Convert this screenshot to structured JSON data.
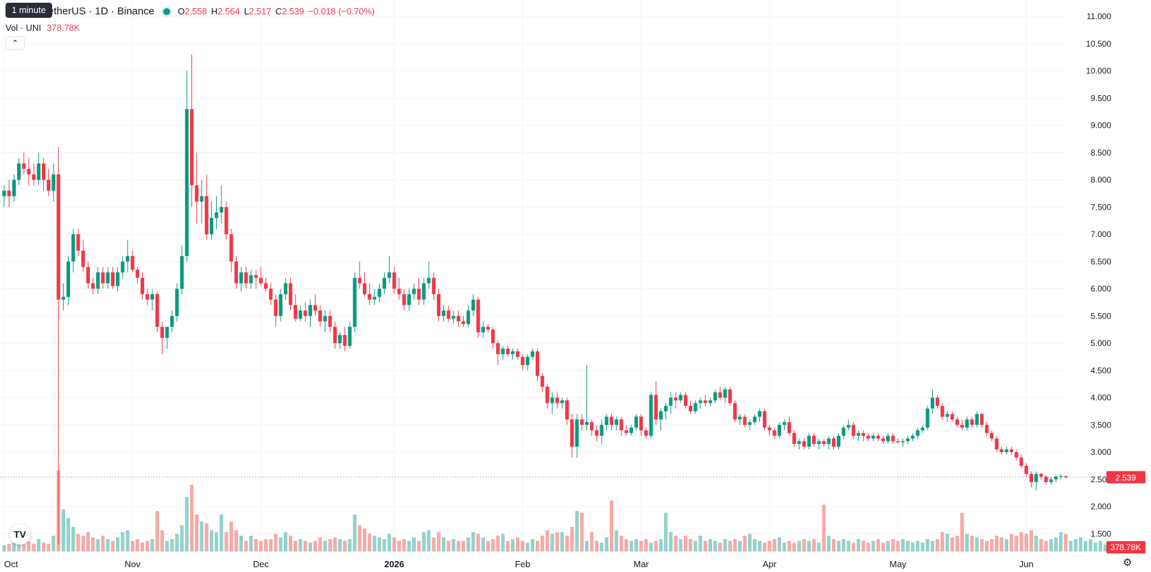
{
  "header": {
    "tooltip": "1 minute",
    "symbol": "etherUS · 1D · Binance",
    "ohlc": [
      {
        "k": "O",
        "v": "2.558"
      },
      {
        "k": "H",
        "v": "2.564"
      },
      {
        "k": "L",
        "v": "2.517"
      },
      {
        "k": "C",
        "v": "2.539"
      }
    ],
    "change": "−0.018 (−0.70%)",
    "volume_label": "Vol · UNI",
    "volume_value": "378.78K",
    "collapse_icon": "chevron-up-icon"
  },
  "colors": {
    "up": "#089981",
    "down": "#f23645",
    "up_vol": "#92d2cc",
    "down_vol": "#f7a9a7",
    "grid": "#f0f3fa",
    "axis_text": "#131722"
  },
  "price_axis": {
    "ticks": [
      "11.000",
      "10.500",
      "10.000",
      "9.500",
      "9.000",
      "8.500",
      "8.000",
      "7.500",
      "7.000",
      "6.500",
      "6.000",
      "5.500",
      "5.000",
      "4.500",
      "4.000",
      "3.500",
      "3.000",
      "2.500",
      "2.000",
      "1.500"
    ]
  },
  "time_axis": {
    "labels": [
      "Oct",
      "Nov",
      "Dec",
      "2026",
      "Feb",
      "Mar",
      "Apr",
      "May",
      "Jun"
    ]
  },
  "last_price": {
    "label": "2.539",
    "value": 2.539
  },
  "last_volume": {
    "label": "378.78K"
  },
  "chart_data": {
    "type": "candlestick",
    "x_axis": "date (daily candles)",
    "y_axis": "price (USDT)",
    "ylim": [
      1.25,
      11.15
    ],
    "grid": true,
    "candles": [
      [
        7.7,
        7.9,
        7.5,
        7.8
      ],
      [
        7.8,
        8.0,
        7.5,
        7.7
      ],
      [
        7.7,
        8.1,
        7.6,
        8.0
      ],
      [
        8.0,
        8.4,
        7.9,
        8.3
      ],
      [
        8.3,
        8.5,
        8.1,
        8.2
      ],
      [
        8.2,
        8.4,
        7.9,
        8.1
      ],
      [
        8.1,
        8.3,
        7.9,
        8.0
      ],
      [
        8.0,
        8.5,
        7.9,
        8.3
      ],
      [
        8.3,
        8.4,
        7.8,
        8.0
      ],
      [
        8.0,
        8.2,
        7.7,
        7.8
      ],
      [
        7.8,
        8.3,
        7.6,
        8.1
      ],
      [
        8.1,
        8.6,
        1.3,
        5.8
      ],
      [
        5.8,
        6.1,
        5.6,
        5.85
      ],
      [
        5.85,
        6.6,
        5.7,
        6.5
      ],
      [
        6.5,
        7.1,
        6.3,
        7.0
      ],
      [
        7.0,
        7.1,
        6.6,
        6.7
      ],
      [
        6.7,
        6.9,
        6.3,
        6.4
      ],
      [
        6.4,
        6.5,
        6.0,
        6.1
      ],
      [
        6.1,
        6.2,
        5.9,
        6.0
      ],
      [
        6.0,
        6.4,
        5.9,
        6.3
      ],
      [
        6.3,
        6.4,
        6.0,
        6.1
      ],
      [
        6.1,
        6.4,
        6.0,
        6.3
      ],
      [
        6.3,
        6.4,
        6.0,
        6.05
      ],
      [
        6.05,
        6.4,
        5.95,
        6.3
      ],
      [
        6.3,
        6.6,
        6.2,
        6.5
      ],
      [
        6.5,
        6.9,
        6.3,
        6.6
      ],
      [
        6.6,
        6.7,
        6.3,
        6.35
      ],
      [
        6.35,
        6.4,
        6.1,
        6.2
      ],
      [
        6.2,
        6.3,
        5.8,
        5.9
      ],
      [
        5.9,
        6.0,
        5.7,
        5.8
      ],
      [
        5.8,
        6.0,
        5.6,
        5.9
      ],
      [
        5.9,
        5.95,
        5.2,
        5.3
      ],
      [
        5.3,
        5.4,
        4.8,
        5.1
      ],
      [
        5.1,
        5.3,
        4.9,
        5.3
      ],
      [
        5.3,
        5.6,
        5.2,
        5.5
      ],
      [
        5.5,
        6.1,
        5.4,
        6.0
      ],
      [
        6.0,
        6.8,
        5.9,
        6.6
      ],
      [
        6.6,
        10.0,
        6.5,
        9.3
      ],
      [
        9.3,
        10.3,
        7.5,
        7.9
      ],
      [
        7.9,
        8.5,
        7.2,
        7.6
      ],
      [
        7.6,
        8.0,
        7.2,
        7.7
      ],
      [
        7.7,
        8.1,
        6.9,
        7.0
      ],
      [
        7.0,
        7.6,
        6.9,
        7.3
      ],
      [
        7.3,
        7.7,
        7.1,
        7.4
      ],
      [
        7.4,
        7.9,
        7.2,
        7.5
      ],
      [
        7.5,
        7.6,
        6.9,
        7.0
      ],
      [
        7.0,
        7.1,
        6.3,
        6.5
      ],
      [
        6.5,
        6.6,
        6.0,
        6.1
      ],
      [
        6.1,
        6.4,
        5.95,
        6.3
      ],
      [
        6.3,
        6.4,
        6.0,
        6.1
      ],
      [
        6.1,
        6.35,
        6.0,
        6.25
      ],
      [
        6.25,
        6.35,
        6.0,
        6.2
      ],
      [
        6.2,
        6.4,
        6.05,
        6.1
      ],
      [
        6.1,
        6.2,
        5.95,
        6.0
      ],
      [
        6.0,
        6.1,
        5.7,
        5.8
      ],
      [
        5.8,
        5.9,
        5.3,
        5.5
      ],
      [
        5.5,
        6.0,
        5.4,
        5.9
      ],
      [
        5.9,
        6.2,
        5.8,
        6.1
      ],
      [
        6.1,
        6.2,
        5.6,
        5.7
      ],
      [
        5.7,
        5.9,
        5.4,
        5.45
      ],
      [
        5.45,
        5.7,
        5.4,
        5.6
      ],
      [
        5.6,
        5.75,
        5.4,
        5.5
      ],
      [
        5.5,
        5.8,
        5.3,
        5.7
      ],
      [
        5.7,
        5.9,
        5.5,
        5.6
      ],
      [
        5.6,
        5.7,
        5.3,
        5.4
      ],
      [
        5.4,
        5.6,
        5.2,
        5.5
      ],
      [
        5.5,
        5.6,
        5.2,
        5.3
      ],
      [
        5.3,
        5.4,
        4.9,
        5.0
      ],
      [
        5.0,
        5.2,
        4.9,
        5.15
      ],
      [
        5.15,
        5.3,
        4.85,
        4.95
      ],
      [
        4.95,
        5.4,
        4.9,
        5.3
      ],
      [
        5.3,
        6.3,
        5.2,
        6.2
      ],
      [
        6.2,
        6.5,
        6.0,
        6.1
      ],
      [
        6.1,
        6.3,
        5.85,
        5.9
      ],
      [
        5.9,
        6.1,
        5.7,
        5.8
      ],
      [
        5.8,
        6.0,
        5.7,
        5.85
      ],
      [
        5.85,
        6.1,
        5.75,
        6.0
      ],
      [
        6.0,
        6.3,
        5.9,
        6.2
      ],
      [
        6.2,
        6.6,
        6.1,
        6.3
      ],
      [
        6.3,
        6.4,
        5.9,
        6.0
      ],
      [
        6.0,
        6.2,
        5.8,
        5.9
      ],
      [
        5.9,
        6.0,
        5.6,
        5.7
      ],
      [
        5.7,
        6.0,
        5.6,
        5.9
      ],
      [
        5.9,
        6.1,
        5.8,
        6.0
      ],
      [
        6.0,
        6.2,
        5.7,
        5.8
      ],
      [
        5.8,
        6.2,
        5.7,
        6.1
      ],
      [
        6.1,
        6.5,
        6.0,
        6.2
      ],
      [
        6.2,
        6.3,
        5.8,
        5.9
      ],
      [
        5.9,
        6.0,
        5.4,
        5.5
      ],
      [
        5.5,
        5.7,
        5.4,
        5.6
      ],
      [
        5.6,
        5.7,
        5.4,
        5.45
      ],
      [
        5.45,
        5.6,
        5.35,
        5.5
      ],
      [
        5.5,
        5.6,
        5.3,
        5.4
      ],
      [
        5.4,
        5.5,
        5.3,
        5.35
      ],
      [
        5.35,
        5.7,
        5.3,
        5.6
      ],
      [
        5.6,
        5.9,
        5.5,
        5.8
      ],
      [
        5.8,
        5.85,
        5.1,
        5.2
      ],
      [
        5.2,
        5.4,
        5.1,
        5.3
      ],
      [
        5.3,
        5.35,
        5.2,
        5.25
      ],
      [
        5.25,
        5.3,
        4.9,
        5.0
      ],
      [
        5.0,
        5.05,
        4.6,
        4.8
      ],
      [
        4.8,
        4.95,
        4.7,
        4.9
      ],
      [
        4.9,
        4.95,
        4.75,
        4.8
      ],
      [
        4.8,
        4.9,
        4.7,
        4.85
      ],
      [
        4.85,
        4.9,
        4.7,
        4.75
      ],
      [
        4.75,
        4.8,
        4.5,
        4.6
      ],
      [
        4.6,
        4.8,
        4.5,
        4.75
      ],
      [
        4.75,
        4.9,
        4.7,
        4.85
      ],
      [
        4.85,
        4.9,
        4.3,
        4.4
      ],
      [
        4.4,
        4.45,
        4.1,
        4.2
      ],
      [
        4.2,
        4.25,
        3.8,
        3.9
      ],
      [
        3.9,
        4.1,
        3.7,
        4.0
      ],
      [
        4.0,
        4.1,
        3.8,
        3.9
      ],
      [
        3.9,
        4.0,
        3.8,
        3.95
      ],
      [
        3.95,
        4.0,
        3.5,
        3.6
      ],
      [
        3.6,
        3.7,
        2.9,
        3.1
      ],
      [
        3.1,
        3.7,
        2.9,
        3.6
      ],
      [
        3.6,
        3.7,
        3.4,
        3.5
      ],
      [
        3.5,
        4.6,
        3.4,
        3.55
      ],
      [
        3.55,
        3.6,
        3.3,
        3.4
      ],
      [
        3.4,
        3.5,
        3.2,
        3.3
      ],
      [
        3.3,
        3.6,
        3.15,
        3.5
      ],
      [
        3.5,
        3.7,
        3.4,
        3.65
      ],
      [
        3.65,
        3.7,
        3.4,
        3.5
      ],
      [
        3.5,
        3.65,
        3.4,
        3.6
      ],
      [
        3.6,
        3.65,
        3.3,
        3.4
      ],
      [
        3.4,
        3.5,
        3.3,
        3.35
      ],
      [
        3.35,
        3.5,
        3.3,
        3.45
      ],
      [
        3.45,
        3.7,
        3.4,
        3.65
      ],
      [
        3.65,
        3.7,
        3.3,
        3.4
      ],
      [
        3.4,
        3.45,
        3.25,
        3.3
      ],
      [
        3.3,
        4.1,
        3.25,
        4.05
      ],
      [
        4.05,
        4.3,
        3.5,
        3.6
      ],
      [
        3.6,
        3.8,
        3.4,
        3.75
      ],
      [
        3.75,
        3.9,
        3.6,
        3.85
      ],
      [
        3.85,
        4.1,
        3.7,
        4.0
      ],
      [
        4.0,
        4.1,
        3.8,
        3.95
      ],
      [
        3.95,
        4.1,
        3.9,
        4.05
      ],
      [
        4.05,
        4.1,
        3.8,
        3.85
      ],
      [
        3.85,
        3.95,
        3.7,
        3.75
      ],
      [
        3.75,
        3.95,
        3.7,
        3.9
      ],
      [
        3.9,
        4.0,
        3.8,
        3.95
      ],
      [
        3.95,
        4.05,
        3.85,
        3.9
      ],
      [
        3.9,
        4.0,
        3.85,
        3.95
      ],
      [
        3.95,
        4.15,
        3.9,
        4.1
      ],
      [
        4.1,
        4.2,
        3.95,
        4.0
      ],
      [
        4.0,
        4.2,
        3.9,
        4.15
      ],
      [
        4.15,
        4.2,
        3.85,
        3.9
      ],
      [
        3.9,
        3.95,
        3.55,
        3.6
      ],
      [
        3.6,
        3.7,
        3.5,
        3.65
      ],
      [
        3.65,
        3.7,
        3.45,
        3.5
      ],
      [
        3.5,
        3.6,
        3.4,
        3.55
      ],
      [
        3.55,
        3.7,
        3.5,
        3.65
      ],
      [
        3.65,
        3.8,
        3.55,
        3.75
      ],
      [
        3.75,
        3.8,
        3.4,
        3.45
      ],
      [
        3.45,
        3.5,
        3.3,
        3.4
      ],
      [
        3.4,
        3.45,
        3.25,
        3.3
      ],
      [
        3.3,
        3.55,
        3.25,
        3.5
      ],
      [
        3.5,
        3.6,
        3.4,
        3.55
      ],
      [
        3.55,
        3.65,
        3.3,
        3.35
      ],
      [
        3.35,
        3.4,
        3.1,
        3.15
      ],
      [
        3.15,
        3.25,
        3.05,
        3.2
      ],
      [
        3.2,
        3.25,
        3.05,
        3.1
      ],
      [
        3.1,
        3.35,
        3.05,
        3.3
      ],
      [
        3.3,
        3.35,
        3.1,
        3.15
      ],
      [
        3.15,
        3.25,
        3.05,
        3.2
      ],
      [
        3.2,
        3.25,
        3.1,
        3.15
      ],
      [
        3.15,
        3.3,
        3.05,
        3.25
      ],
      [
        3.25,
        3.3,
        3.05,
        3.1
      ],
      [
        3.1,
        3.35,
        3.05,
        3.3
      ],
      [
        3.3,
        3.5,
        3.25,
        3.45
      ],
      [
        3.45,
        3.6,
        3.4,
        3.5
      ],
      [
        3.5,
        3.55,
        3.25,
        3.3
      ],
      [
        3.3,
        3.4,
        3.2,
        3.35
      ],
      [
        3.35,
        3.4,
        3.2,
        3.3
      ],
      [
        3.3,
        3.35,
        3.2,
        3.25
      ],
      [
        3.25,
        3.35,
        3.2,
        3.3
      ],
      [
        3.3,
        3.35,
        3.2,
        3.25
      ],
      [
        3.25,
        3.3,
        3.15,
        3.2
      ],
      [
        3.2,
        3.35,
        3.15,
        3.3
      ],
      [
        3.3,
        3.35,
        3.15,
        3.2
      ],
      [
        3.2,
        3.25,
        3.15,
        3.18
      ],
      [
        3.18,
        3.25,
        3.1,
        3.2
      ],
      [
        3.2,
        3.3,
        3.15,
        3.25
      ],
      [
        3.25,
        3.35,
        3.2,
        3.3
      ],
      [
        3.3,
        3.45,
        3.25,
        3.4
      ],
      [
        3.4,
        3.5,
        3.35,
        3.45
      ],
      [
        3.45,
        3.85,
        3.4,
        3.8
      ],
      [
        3.8,
        4.15,
        3.7,
        4.0
      ],
      [
        4.0,
        4.05,
        3.8,
        3.85
      ],
      [
        3.85,
        3.9,
        3.6,
        3.65
      ],
      [
        3.65,
        3.75,
        3.55,
        3.7
      ],
      [
        3.7,
        3.75,
        3.55,
        3.6
      ],
      [
        3.6,
        3.65,
        3.45,
        3.5
      ],
      [
        3.5,
        3.6,
        3.4,
        3.45
      ],
      [
        3.45,
        3.65,
        3.4,
        3.6
      ],
      [
        3.6,
        3.65,
        3.45,
        3.5
      ],
      [
        3.5,
        3.75,
        3.45,
        3.7
      ],
      [
        3.7,
        3.72,
        3.45,
        3.5
      ],
      [
        3.5,
        3.55,
        3.3,
        3.35
      ],
      [
        3.35,
        3.4,
        3.2,
        3.25
      ],
      [
        3.25,
        3.3,
        3.0,
        3.05
      ],
      [
        3.05,
        3.1,
        2.95,
        3.0
      ],
      [
        3.0,
        3.1,
        2.95,
        3.05
      ],
      [
        3.05,
        3.1,
        2.95,
        3.0
      ],
      [
        3.0,
        3.05,
        2.85,
        2.9
      ],
      [
        2.9,
        2.95,
        2.7,
        2.75
      ],
      [
        2.75,
        2.8,
        2.55,
        2.6
      ],
      [
        2.6,
        2.65,
        2.35,
        2.45
      ],
      [
        2.45,
        2.65,
        2.3,
        2.6
      ],
      [
        2.6,
        2.62,
        2.5,
        2.55
      ],
      [
        2.55,
        2.58,
        2.4,
        2.45
      ],
      [
        2.45,
        2.55,
        2.4,
        2.5
      ],
      [
        2.5,
        2.58,
        2.45,
        2.55
      ],
      [
        2.55,
        2.6,
        2.5,
        2.56
      ],
      [
        2.558,
        2.564,
        2.517,
        2.539
      ]
    ],
    "volume_ylim": [
      0,
      3.9
    ],
    "volumes": [
      0.18,
      0.22,
      0.25,
      0.3,
      0.2,
      0.28,
      0.22,
      0.35,
      0.25,
      0.22,
      0.45,
      2.3,
      1.2,
      0.95,
      0.7,
      0.5,
      0.45,
      0.55,
      0.4,
      0.35,
      0.45,
      0.35,
      0.3,
      0.4,
      0.55,
      0.6,
      0.3,
      0.35,
      0.25,
      0.3,
      0.35,
      1.15,
      0.6,
      0.3,
      0.35,
      0.5,
      0.75,
      1.55,
      1.9,
      1.05,
      0.85,
      0.8,
      0.6,
      0.55,
      1.05,
      0.55,
      0.85,
      0.6,
      0.45,
      0.3,
      0.45,
      0.35,
      0.3,
      0.35,
      0.35,
      0.5,
      0.4,
      0.55,
      0.45,
      0.3,
      0.35,
      0.3,
      0.25,
      0.3,
      0.4,
      0.3,
      0.35,
      0.4,
      0.35,
      0.3,
      0.35,
      1.05,
      0.75,
      0.65,
      0.5,
      0.45,
      0.4,
      0.35,
      0.5,
      0.4,
      0.3,
      0.35,
      0.3,
      0.4,
      0.3,
      0.55,
      0.6,
      0.4,
      0.55,
      0.4,
      0.3,
      0.35,
      0.3,
      0.3,
      0.4,
      0.55,
      0.5,
      0.4,
      0.3,
      0.35,
      0.45,
      0.5,
      0.3,
      0.35,
      0.4,
      0.3,
      0.25,
      0.35,
      0.3,
      0.45,
      0.6,
      0.5,
      0.55,
      0.55,
      0.45,
      0.7,
      1.15,
      1.1,
      0.3,
      0.55,
      0.3,
      0.25,
      0.4,
      1.45,
      0.6,
      0.45,
      0.35,
      0.3,
      0.35,
      0.3,
      0.35,
      0.25,
      0.3,
      0.35,
      1.1,
      0.55,
      0.45,
      0.35,
      0.45,
      0.35,
      0.3,
      0.45,
      0.3,
      0.35,
      0.3,
      0.25,
      0.35,
      0.3,
      0.35,
      0.3,
      0.45,
      0.5,
      0.35,
      0.3,
      0.25,
      0.3,
      0.35,
      0.4,
      0.25,
      0.3,
      0.25,
      0.3,
      0.35,
      0.3,
      0.35,
      0.25,
      1.33,
      0.45,
      0.35,
      0.3,
      0.35,
      0.3,
      0.25,
      0.35,
      0.3,
      0.25,
      0.3,
      0.35,
      0.25,
      0.3,
      0.35,
      0.3,
      0.35,
      0.3,
      0.25,
      0.3,
      0.25,
      0.35,
      0.3,
      0.35,
      0.55,
      0.5,
      0.4,
      0.45,
      1.1,
      0.5,
      0.45,
      0.4,
      0.35,
      0.3,
      0.35,
      0.45,
      0.4,
      0.35,
      0.5,
      0.45,
      0.55,
      0.5,
      0.6,
      0.45,
      0.35,
      0.3,
      0.35,
      0.4,
      0.55,
      0.5,
      0.3,
      0.35,
      0.4,
      0.3,
      0.35,
      0.25,
      0.3,
      0.2
    ]
  }
}
